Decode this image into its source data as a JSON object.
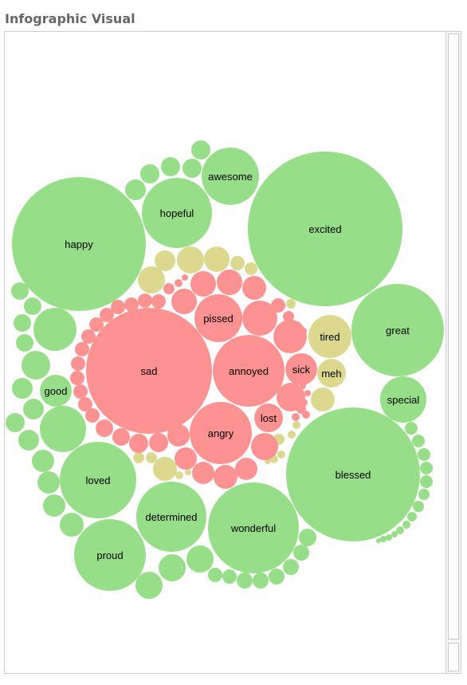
{
  "header": {
    "title": "Infographic Visual"
  },
  "colors": {
    "positive": "#96de87",
    "negative": "#fd9292",
    "neutral": "#dcd98e"
  },
  "chart_data": {
    "type": "bubble",
    "labeled_bubbles": [
      {
        "word": "happy",
        "group": "positive"
      },
      {
        "word": "hopeful",
        "group": "positive"
      },
      {
        "word": "awesome",
        "group": "positive"
      },
      {
        "word": "excited",
        "group": "positive"
      },
      {
        "word": "great",
        "group": "positive"
      },
      {
        "word": "special",
        "group": "positive"
      },
      {
        "word": "blessed",
        "group": "positive"
      },
      {
        "word": "wonderful",
        "group": "positive"
      },
      {
        "word": "determined",
        "group": "positive"
      },
      {
        "word": "proud",
        "group": "positive"
      },
      {
        "word": "loved",
        "group": "positive"
      },
      {
        "word": "good",
        "group": "positive"
      },
      {
        "word": "sad",
        "group": "negative"
      },
      {
        "word": "pissed",
        "group": "negative"
      },
      {
        "word": "annoyed",
        "group": "negative"
      },
      {
        "word": "sick",
        "group": "negative"
      },
      {
        "word": "angry",
        "group": "negative"
      },
      {
        "word": "lost",
        "group": "negative"
      },
      {
        "word": "tired",
        "group": "neutral"
      },
      {
        "word": "meh",
        "group": "neutral"
      }
    ]
  }
}
